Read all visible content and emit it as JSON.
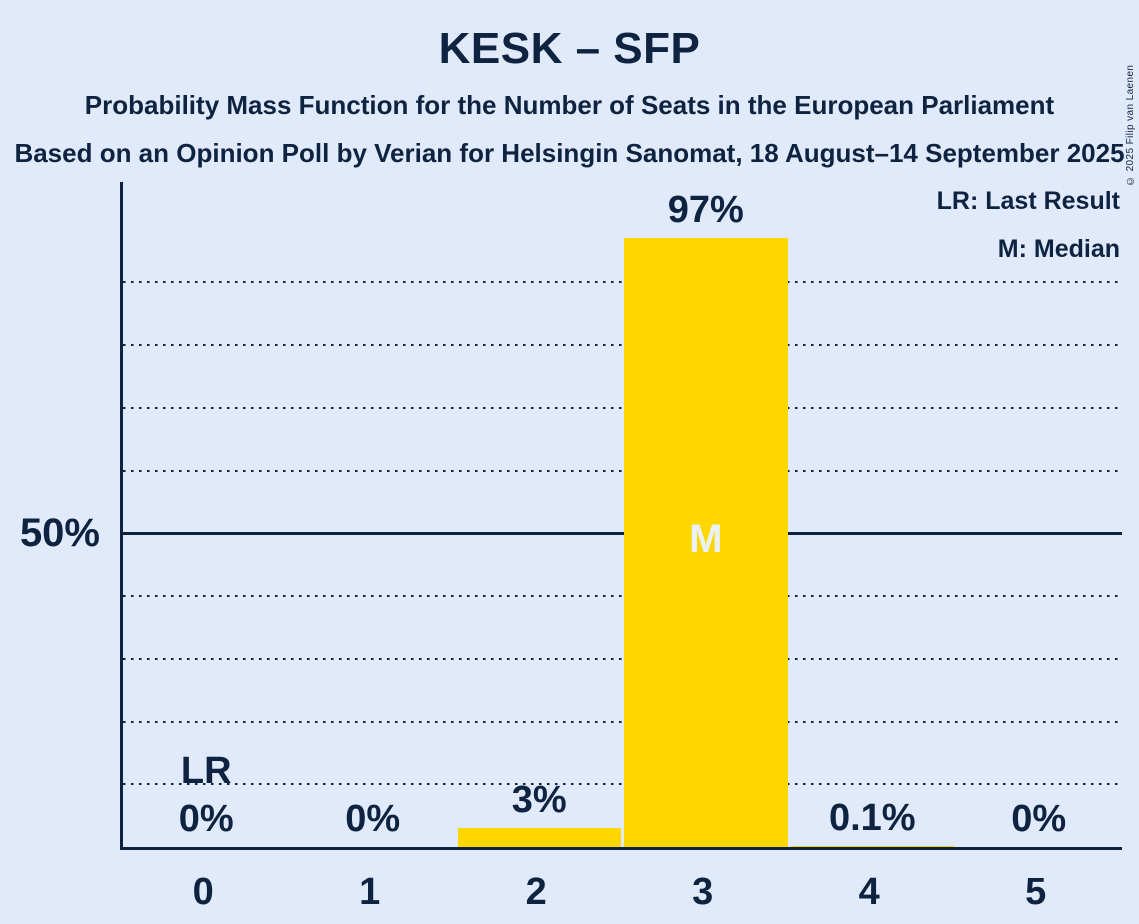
{
  "title": "KESK – SFP",
  "subtitle_line1": "Probability Mass Function for the Number of Seats in the European Parliament",
  "subtitle_line2": "Based on an Opinion Poll by Verian for Helsingin Sanomat, 18 August–14 September 2025",
  "legend": {
    "lr": "LR: Last Result",
    "m": "M: Median"
  },
  "copyright": "© 2025 Filip van Laenen",
  "y_axis_label": "50%",
  "chart_data": {
    "type": "bar",
    "title": "KESK – SFP",
    "xlabel": "",
    "ylabel": "",
    "categories": [
      "0",
      "1",
      "2",
      "3",
      "4",
      "5"
    ],
    "values": [
      0,
      0,
      3,
      97,
      0.1,
      0
    ],
    "value_labels": [
      "0%",
      "0%",
      "3%",
      "97%",
      "0.1%",
      "0%"
    ],
    "ylim": [
      0,
      106
    ],
    "y_solid_line_pct": 50,
    "y_dotted_gridlines_pct": [
      10,
      20,
      30,
      40,
      60,
      70,
      80,
      90
    ],
    "grid": "dotted horizontal",
    "legend_position": "top-right",
    "median_category": "3",
    "median_marker": "M",
    "last_result_category": "0",
    "last_result_marker": "LR",
    "bar_color": "#FFD700",
    "background_color": "#E0EAFA",
    "text_color": "#0E2340",
    "median_text_color": "#EAF1FB"
  }
}
